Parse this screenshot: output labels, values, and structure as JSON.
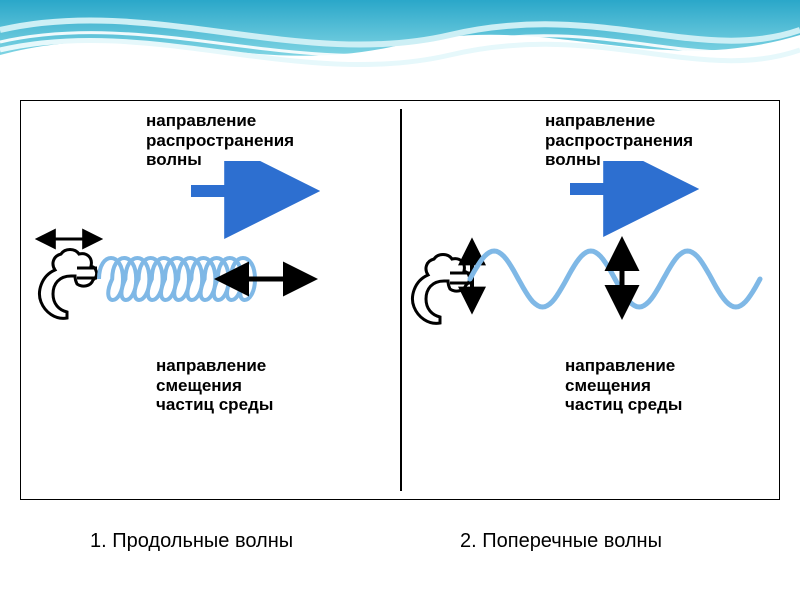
{
  "colors": {
    "banner_dark": "#2aa7c9",
    "banner_light": "#a7e3ec",
    "wave_blue": "#7fb8e6",
    "arrow_blue": "#2d6fd0",
    "hand_outline": "#000000",
    "text": "#000000",
    "bg": "#ffffff"
  },
  "typography": {
    "label_fontsize": 17,
    "caption_fontsize": 20,
    "font_weight": "bold"
  },
  "left": {
    "top_label_l1": "направление",
    "top_label_l2": "распространения",
    "top_label_l3": "волны",
    "bottom_label_l1": "направление",
    "bottom_label_l2": "смещения",
    "bottom_label_l3": "частиц среды",
    "caption": "1. Продольные волны",
    "diagram": {
      "type": "spring-coil",
      "coils": 11,
      "coil_width": 24,
      "coil_height": 56,
      "stroke_width": 4,
      "color_key": "wave_blue",
      "prop_arrow_len": 110,
      "disp_arrow_len": 90,
      "hand_motion_arrow_len": 60
    }
  },
  "right": {
    "top_label_l1": "направление",
    "top_label_l2": "распространения",
    "top_label_l3": "волны",
    "bottom_label_l1": "направление",
    "bottom_label_l2": "смещения",
    "bottom_label_l3": "частиц среды",
    "caption": "2. Поперечные волны",
    "diagram": {
      "type": "sine",
      "cycles": 3,
      "amplitude": 28,
      "length": 290,
      "stroke_width": 5,
      "color_key": "wave_blue",
      "prop_arrow_len": 110,
      "disp_arrow_len": 70,
      "hand_motion_arrow_len": 60
    }
  }
}
